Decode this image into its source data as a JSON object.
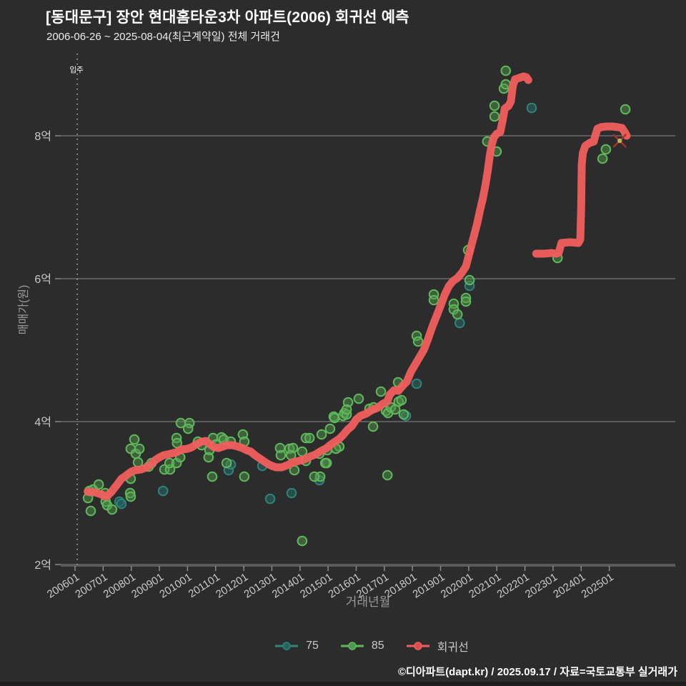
{
  "header": {
    "title": "[동대문구] 장안 현대홈타운3차 아파트(2006) 회귀선 예측",
    "subtitle": "2006-06-26 ~ 2025-08-04(최근계약일) 전체 거래건"
  },
  "footer": {
    "attribution": "©디아파트(dapt.kr) / 2025.09.17 / 자료=국토교통부 실거래가"
  },
  "colors": {
    "background": "#2c2c2c",
    "grid": "#8a8a8a",
    "tick_text": "#c9c9c9",
    "axis_title_text": "#9a9a9a",
    "annotation_line": "#d8d8d8",
    "series_75_stroke": "#2f837b",
    "series_75_fill": "rgba(38,100,95,0.6)",
    "series_85_stroke": "#5fb95b",
    "series_85_fill": "rgba(80,150,75,0.5)",
    "regression_line": "#f15e5e",
    "marker_x": "#a93226",
    "marker_dot": "#bdb35f"
  },
  "chart_data": {
    "type": "scatter",
    "title": "[동대문구] 장안 현대홈타운3차 아파트(2006) 회귀선 예측",
    "subtitle": "2006-06-26 ~ 2025-08-04(최근계약일) 전체 거래건",
    "xlabel": "거래년월",
    "ylabel": "매매가(원)",
    "unit_note": "price values in 억원, x values as decimal year",
    "ylim": [
      1.98,
      9.15
    ],
    "xlim": [
      2005.5,
      2027.3
    ],
    "grid": "horizontal-only",
    "legend_position": "bottom-center",
    "x_ticks": [
      "200601",
      "200701",
      "200801",
      "200901",
      "201001",
      "201101",
      "201201",
      "201301",
      "201401",
      "201501",
      "201601",
      "201701",
      "201801",
      "201901",
      "202001",
      "202101",
      "202201",
      "202301",
      "202401",
      "202501"
    ],
    "y_ticks": [
      {
        "v": 2,
        "label": "2억"
      },
      {
        "v": 4,
        "label": "4억"
      },
      {
        "v": 6,
        "label": "6억"
      },
      {
        "v": 8,
        "label": "8억"
      }
    ],
    "annotation": {
      "label": "입주",
      "t": 2006.08
    },
    "last_trade_marker": {
      "t": 2025.37,
      "v": 7.93
    },
    "series": [
      {
        "name": "75",
        "kind": "scatter",
        "points": [
          [
            2007.58,
            2.88
          ],
          [
            2007.65,
            2.85
          ],
          [
            2009.13,
            3.03
          ],
          [
            2011.46,
            3.32
          ],
          [
            2011.54,
            3.4
          ],
          [
            2012.66,
            3.38
          ],
          [
            2012.94,
            2.92
          ],
          [
            2013.7,
            3.0
          ],
          [
            2014.69,
            3.18
          ],
          [
            2017.77,
            4.08
          ],
          [
            2018.15,
            4.53
          ],
          [
            2019.68,
            5.38
          ],
          [
            2020.03,
            5.9
          ],
          [
            2022.24,
            8.39
          ]
        ]
      },
      {
        "name": "85",
        "kind": "scatter",
        "points": [
          [
            2006.51,
            3.03
          ],
          [
            2006.64,
            3.05
          ],
          [
            2006.46,
            2.93
          ],
          [
            2006.84,
            3.12
          ],
          [
            2007.07,
            3.0
          ],
          [
            2007.09,
            2.88
          ],
          [
            2007.14,
            2.83
          ],
          [
            2006.56,
            2.75
          ],
          [
            2007.32,
            2.77
          ],
          [
            2007.98,
            3.2
          ],
          [
            2007.96,
            3.0
          ],
          [
            2007.98,
            2.95
          ],
          [
            2008.11,
            3.75
          ],
          [
            2007.98,
            3.62
          ],
          [
            2008.16,
            3.55
          ],
          [
            2008.24,
            3.43
          ],
          [
            2008.29,
            3.62
          ],
          [
            2008.62,
            3.37
          ],
          [
            2008.72,
            3.42
          ],
          [
            2009.18,
            3.33
          ],
          [
            2009.38,
            3.33
          ],
          [
            2009.36,
            3.42
          ],
          [
            2009.61,
            3.77
          ],
          [
            2009.63,
            3.7
          ],
          [
            2009.61,
            3.42
          ],
          [
            2009.74,
            3.5
          ],
          [
            2009.76,
            3.98
          ],
          [
            2010.07,
            3.98
          ],
          [
            2010.02,
            3.9
          ],
          [
            2010.37,
            3.72
          ],
          [
            2010.5,
            3.67
          ],
          [
            2010.78,
            3.6
          ],
          [
            2010.91,
            3.77
          ],
          [
            2011.01,
            3.68
          ],
          [
            2011.21,
            3.78
          ],
          [
            2011.29,
            3.75
          ],
          [
            2011.54,
            3.72
          ],
          [
            2011.97,
            3.82
          ],
          [
            2012.02,
            3.72
          ],
          [
            2010.75,
            3.5
          ],
          [
            2011.39,
            3.42
          ],
          [
            2010.88,
            3.23
          ],
          [
            2012.02,
            3.23
          ],
          [
            2013.29,
            3.63
          ],
          [
            2013.32,
            3.53
          ],
          [
            2013.63,
            3.62
          ],
          [
            2013.75,
            3.63
          ],
          [
            2013.68,
            3.53
          ],
          [
            2014.08,
            3.58
          ],
          [
            2014.21,
            3.77
          ],
          [
            2014.34,
            3.77
          ],
          [
            2014.21,
            3.45
          ],
          [
            2013.8,
            3.32
          ],
          [
            2014.95,
            3.42
          ],
          [
            2015.07,
            3.9
          ],
          [
            2015.2,
            4.07
          ],
          [
            2015.4,
            3.65
          ],
          [
            2015.58,
            4.12
          ],
          [
            2014.08,
            2.33
          ],
          [
            2014.72,
            3.23
          ],
          [
            2014.51,
            3.23
          ],
          [
            2015.23,
            4.05
          ],
          [
            2015.53,
            4.08
          ],
          [
            2015.66,
            4.1
          ],
          [
            2015.71,
            4.27
          ],
          [
            2015.66,
            4.17
          ],
          [
            2016.09,
            4.32
          ],
          [
            2016.47,
            4.18
          ],
          [
            2016.62,
            4.2
          ],
          [
            2016.88,
            4.42
          ],
          [
            2017.06,
            4.15
          ],
          [
            2017.13,
            4.12
          ],
          [
            2017.23,
            4.2
          ],
          [
            2017.39,
            4.17
          ],
          [
            2017.51,
            4.28
          ],
          [
            2017.49,
            4.55
          ],
          [
            2017.61,
            4.3
          ],
          [
            2017.69,
            4.1
          ],
          [
            2016.6,
            3.93
          ],
          [
            2014.77,
            3.82
          ],
          [
            2014.9,
            3.42
          ],
          [
            2014.69,
            3.55
          ],
          [
            2015.28,
            3.62
          ],
          [
            2014.97,
            3.6
          ],
          [
            2017.11,
            3.25
          ],
          [
            2018.15,
            5.2
          ],
          [
            2018.2,
            5.12
          ],
          [
            2018.76,
            5.78
          ],
          [
            2018.76,
            5.7
          ],
          [
            2019.47,
            5.65
          ],
          [
            2019.47,
            5.57
          ],
          [
            2019.6,
            5.5
          ],
          [
            2019.9,
            5.73
          ],
          [
            2019.9,
            5.68
          ],
          [
            2019.98,
            6.4
          ],
          [
            2020.03,
            5.98
          ],
          [
            2020.66,
            7.92
          ],
          [
            2020.92,
            8.42
          ],
          [
            2020.92,
            8.27
          ],
          [
            2020.99,
            7.78
          ],
          [
            2021.25,
            8.66
          ],
          [
            2021.32,
            8.91
          ],
          [
            2021.32,
            8.72
          ],
          [
            2023.16,
            6.29
          ],
          [
            2024.76,
            7.68
          ],
          [
            2024.88,
            7.81
          ],
          [
            2025.57,
            8.37
          ]
        ]
      },
      {
        "name": "회귀선",
        "kind": "line",
        "segments": [
          [
            [
              2006.45,
              3.02
            ],
            [
              2006.7,
              3.01
            ],
            [
              2006.95,
              2.98
            ],
            [
              2007.05,
              2.95
            ],
            [
              2007.15,
              2.96
            ],
            [
              2007.3,
              3.02
            ],
            [
              2007.5,
              3.12
            ],
            [
              2007.65,
              3.2
            ],
            [
              2007.8,
              3.24
            ],
            [
              2008.0,
              3.3
            ],
            [
              2008.15,
              3.32
            ],
            [
              2008.35,
              3.33
            ],
            [
              2008.55,
              3.36
            ],
            [
              2008.7,
              3.4
            ],
            [
              2008.85,
              3.46
            ],
            [
              2009.0,
              3.5
            ],
            [
              2009.15,
              3.53
            ],
            [
              2009.4,
              3.55
            ],
            [
              2009.6,
              3.57
            ],
            [
              2009.8,
              3.61
            ],
            [
              2010.0,
              3.62
            ],
            [
              2010.15,
              3.64
            ],
            [
              2010.3,
              3.68
            ],
            [
              2010.5,
              3.72
            ],
            [
              2010.65,
              3.73
            ],
            [
              2010.8,
              3.68
            ],
            [
              2010.95,
              3.64
            ],
            [
              2011.1,
              3.63
            ],
            [
              2011.25,
              3.65
            ],
            [
              2011.4,
              3.67
            ],
            [
              2011.6,
              3.67
            ],
            [
              2011.8,
              3.65
            ],
            [
              2011.95,
              3.63
            ],
            [
              2012.1,
              3.6
            ],
            [
              2012.25,
              3.58
            ],
            [
              2012.4,
              3.53
            ],
            [
              2012.55,
              3.49
            ],
            [
              2012.7,
              3.45
            ],
            [
              2012.85,
              3.41
            ],
            [
              2013.0,
              3.38
            ],
            [
              2013.15,
              3.36
            ],
            [
              2013.35,
              3.36
            ],
            [
              2013.55,
              3.39
            ],
            [
              2013.75,
              3.43
            ],
            [
              2013.95,
              3.45
            ],
            [
              2014.15,
              3.47
            ],
            [
              2014.35,
              3.51
            ],
            [
              2014.55,
              3.54
            ],
            [
              2014.75,
              3.59
            ],
            [
              2014.95,
              3.63
            ],
            [
              2015.1,
              3.68
            ],
            [
              2015.25,
              3.72
            ],
            [
              2015.4,
              3.76
            ],
            [
              2015.55,
              3.82
            ],
            [
              2015.7,
              3.89
            ],
            [
              2015.85,
              3.94
            ],
            [
              2016.0,
              4.03
            ],
            [
              2016.15,
              4.08
            ],
            [
              2016.35,
              4.11
            ],
            [
              2016.55,
              4.16
            ],
            [
              2016.75,
              4.19
            ],
            [
              2016.95,
              4.25
            ],
            [
              2017.1,
              4.28
            ],
            [
              2017.2,
              4.38
            ],
            [
              2017.35,
              4.44
            ],
            [
              2017.5,
              4.43
            ],
            [
              2017.65,
              4.5
            ],
            [
              2017.8,
              4.56
            ],
            [
              2017.95,
              4.7
            ],
            [
              2018.1,
              4.8
            ],
            [
              2018.25,
              4.9
            ],
            [
              2018.4,
              5.0
            ],
            [
              2018.55,
              5.15
            ],
            [
              2018.7,
              5.32
            ],
            [
              2018.85,
              5.47
            ],
            [
              2019.0,
              5.62
            ],
            [
              2019.15,
              5.78
            ],
            [
              2019.3,
              5.9
            ],
            [
              2019.45,
              5.97
            ],
            [
              2019.6,
              6.01
            ],
            [
              2019.75,
              6.08
            ],
            [
              2019.9,
              6.17
            ],
            [
              2020.0,
              6.32
            ],
            [
              2020.1,
              6.47
            ],
            [
              2020.2,
              6.62
            ],
            [
              2020.3,
              6.77
            ],
            [
              2020.4,
              6.95
            ],
            [
              2020.5,
              7.12
            ],
            [
              2020.6,
              7.32
            ],
            [
              2020.68,
              7.52
            ],
            [
              2020.75,
              7.72
            ],
            [
              2020.82,
              7.88
            ],
            [
              2020.9,
              7.98
            ],
            [
              2021.0,
              8.03
            ],
            [
              2021.12,
              8.05
            ],
            [
              2021.2,
              8.2
            ],
            [
              2021.28,
              8.38
            ],
            [
              2021.42,
              8.42
            ],
            [
              2021.5,
              8.48
            ],
            [
              2021.57,
              8.7
            ],
            [
              2021.65,
              8.79
            ],
            [
              2021.8,
              8.81
            ],
            [
              2021.95,
              8.83
            ],
            [
              2022.05,
              8.82
            ],
            [
              2022.12,
              8.78
            ]
          ],
          [
            [
              2022.4,
              6.35
            ],
            [
              2022.7,
              6.35
            ],
            [
              2022.95,
              6.36
            ],
            [
              2023.1,
              6.35
            ],
            [
              2023.2,
              6.36
            ],
            [
              2023.3,
              6.5
            ],
            [
              2023.6,
              6.51
            ],
            [
              2023.9,
              6.5
            ],
            [
              2023.97,
              6.55
            ],
            [
              2024.0,
              7.0
            ],
            [
              2024.02,
              7.6
            ],
            [
              2024.06,
              7.76
            ],
            [
              2024.15,
              7.86
            ],
            [
              2024.3,
              7.9
            ],
            [
              2024.45,
              7.92
            ],
            [
              2024.5,
              8.0
            ],
            [
              2024.58,
              8.1
            ],
            [
              2024.7,
              8.12
            ],
            [
              2024.9,
              8.13
            ],
            [
              2025.1,
              8.13
            ],
            [
              2025.3,
              8.12
            ],
            [
              2025.45,
              8.11
            ],
            [
              2025.55,
              8.05
            ],
            [
              2025.62,
              8.0
            ]
          ]
        ]
      }
    ]
  }
}
